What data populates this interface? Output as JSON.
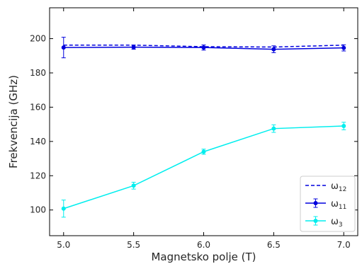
{
  "chart_data": {
    "type": "line",
    "title": "",
    "xlabel": "Magnetsko polje (T)",
    "ylabel": "Frekvencija (GHz)",
    "xlim": [
      4.9,
      7.1
    ],
    "ylim": [
      85,
      218
    ],
    "xticks": [
      5.0,
      5.5,
      6.0,
      6.5,
      7.0
    ],
    "xtick_labels": [
      "5.0",
      "5.5",
      "6.0",
      "6.5",
      "7.0"
    ],
    "yticks": [
      100,
      120,
      140,
      160,
      180,
      200
    ],
    "ytick_labels": [
      "100",
      "120",
      "140",
      "160",
      "180",
      "200"
    ],
    "grid": false,
    "legend_position": "bottom-right",
    "x": [
      5.0,
      5.5,
      6.0,
      6.5,
      7.0
    ],
    "series": [
      {
        "key": "w12",
        "legend_base": "ω",
        "legend_sub": "12",
        "color": "#0000dd",
        "style": "dashed",
        "marker": false,
        "values": [
          196.2,
          196.2,
          195.3,
          195.1,
          196.2
        ],
        "errors": null
      },
      {
        "key": "w11",
        "legend_base": "ω",
        "legend_sub": "11",
        "color": "#0000dd",
        "style": "solid",
        "marker": true,
        "values": [
          194.8,
          195.0,
          194.8,
          193.8,
          194.6
        ],
        "errors": [
          6.0,
          1.2,
          1.5,
          2.0,
          1.8
        ]
      },
      {
        "key": "w3",
        "legend_base": "ω",
        "legend_sub": "3",
        "color": "#00eeee",
        "style": "solid",
        "marker": true,
        "values": [
          100.8,
          114.2,
          134.0,
          147.5,
          149.0
        ],
        "errors": [
          5.0,
          2.0,
          1.5,
          2.2,
          2.2
        ]
      }
    ]
  }
}
